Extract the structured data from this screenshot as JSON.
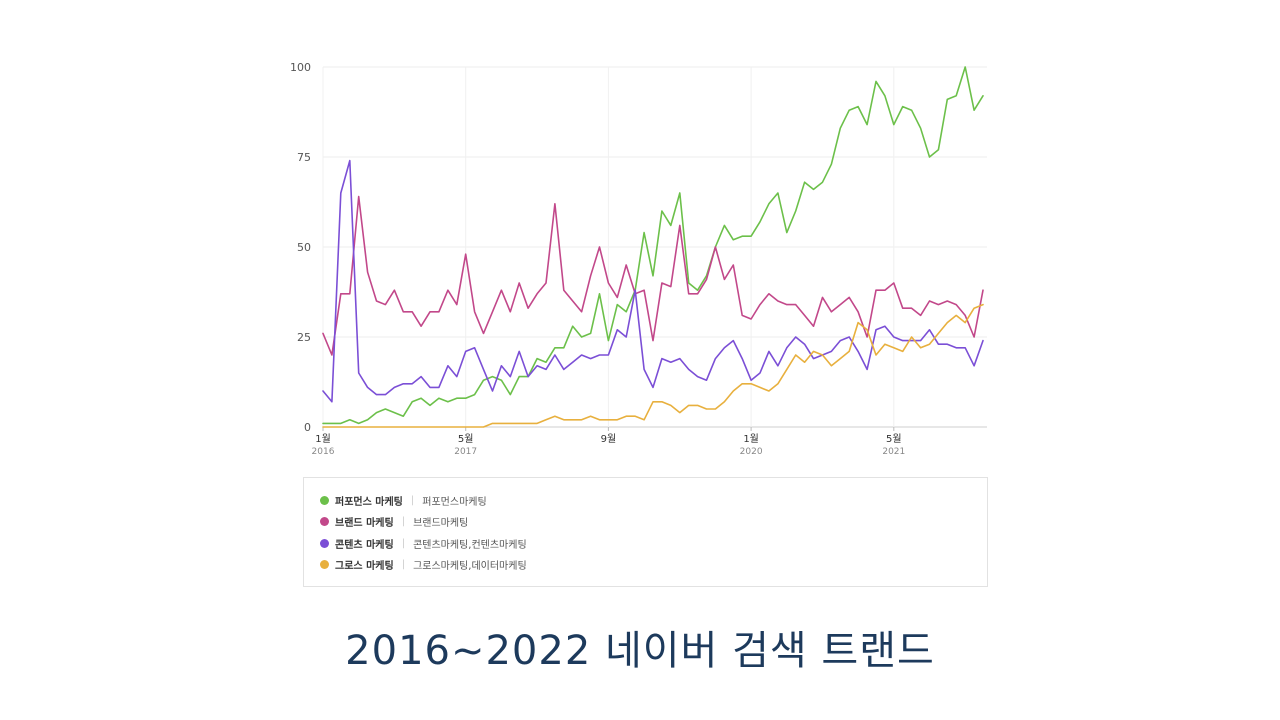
{
  "title": "2016~2022 네이버 검색 트랜드",
  "chart_data": {
    "type": "line",
    "ylim": [
      0,
      100
    ],
    "yticks": [
      "0",
      "25",
      "50",
      "75",
      "100"
    ],
    "xticks": [
      {
        "label": "1월",
        "year": "2016",
        "index": 0
      },
      {
        "label": "5월",
        "year": "2017",
        "index": 16
      },
      {
        "label": "9월",
        "year": "",
        "index": 32
      },
      {
        "label": "1월",
        "year": "2020",
        "index": 48
      },
      {
        "label": "5월",
        "year": "2021",
        "index": 64
      }
    ],
    "grid": true,
    "legend_position": "bottom",
    "series": [
      {
        "name": "퍼포먼스 마케팅",
        "keywords": "퍼포먼스마케팅",
        "color": "#6cc04a",
        "values": [
          1,
          1,
          1,
          2,
          1,
          2,
          4,
          5,
          4,
          3,
          7,
          8,
          6,
          8,
          7,
          8,
          8,
          9,
          13,
          14,
          13,
          9,
          14,
          14,
          19,
          18,
          22,
          22,
          28,
          25,
          26,
          37,
          24,
          34,
          32,
          38,
          54,
          42,
          60,
          56,
          65,
          40,
          38,
          42,
          50,
          56,
          52,
          53,
          53,
          57,
          62,
          65,
          54,
          60,
          68,
          66,
          68,
          73,
          83,
          88,
          89,
          84,
          96,
          92,
          84,
          89,
          88,
          83,
          75,
          77,
          91,
          92,
          100,
          88,
          92
        ]
      },
      {
        "name": "브랜드 마케팅",
        "keywords": "브랜드마케팅",
        "color": "#c2488a",
        "values": [
          26,
          20,
          37,
          37,
          64,
          43,
          35,
          34,
          38,
          32,
          32,
          28,
          32,
          32,
          38,
          34,
          48,
          32,
          26,
          32,
          38,
          32,
          40,
          33,
          37,
          40,
          62,
          38,
          35,
          32,
          42,
          50,
          40,
          36,
          45,
          37,
          38,
          24,
          40,
          39,
          56,
          37,
          37,
          41,
          50,
          41,
          45,
          31,
          30,
          34,
          37,
          35,
          34,
          34,
          31,
          28,
          36,
          32,
          34,
          36,
          32,
          25,
          38,
          38,
          40,
          33,
          33,
          31,
          35,
          34,
          35,
          34,
          31,
          25,
          38
        ]
      },
      {
        "name": "콘텐츠 마케팅",
        "keywords": "콘텐츠마케팅,컨텐츠마케팅",
        "color": "#7b4fd6",
        "values": [
          10,
          7,
          65,
          74,
          15,
          11,
          9,
          9,
          11,
          12,
          12,
          14,
          11,
          11,
          17,
          14,
          21,
          22,
          16,
          10,
          17,
          14,
          21,
          14,
          17,
          16,
          20,
          16,
          18,
          20,
          19,
          20,
          20,
          27,
          25,
          38,
          16,
          11,
          19,
          18,
          19,
          16,
          14,
          13,
          19,
          22,
          24,
          19,
          13,
          15,
          21,
          17,
          22,
          25,
          23,
          19,
          20,
          21,
          24,
          25,
          21,
          16,
          27,
          28,
          25,
          24,
          24,
          24,
          27,
          23,
          23,
          22,
          22,
          17,
          24
        ]
      },
      {
        "name": "그로스 마케팅",
        "keywords": "그로스마케팅,데이터마케팅",
        "color": "#e8b03e",
        "values": [
          0,
          0,
          0,
          0,
          0,
          0,
          0,
          0,
          0,
          0,
          0,
          0,
          0,
          0,
          0,
          0,
          0,
          0,
          0,
          1,
          1,
          1,
          1,
          1,
          1,
          2,
          3,
          2,
          2,
          2,
          3,
          2,
          2,
          2,
          3,
          3,
          2,
          7,
          7,
          6,
          4,
          6,
          6,
          5,
          5,
          7,
          10,
          12,
          12,
          11,
          10,
          12,
          16,
          20,
          18,
          21,
          20,
          17,
          19,
          21,
          29,
          27,
          20,
          23,
          22,
          21,
          25,
          22,
          23,
          26,
          29,
          31,
          29,
          33,
          34
        ]
      }
    ]
  }
}
